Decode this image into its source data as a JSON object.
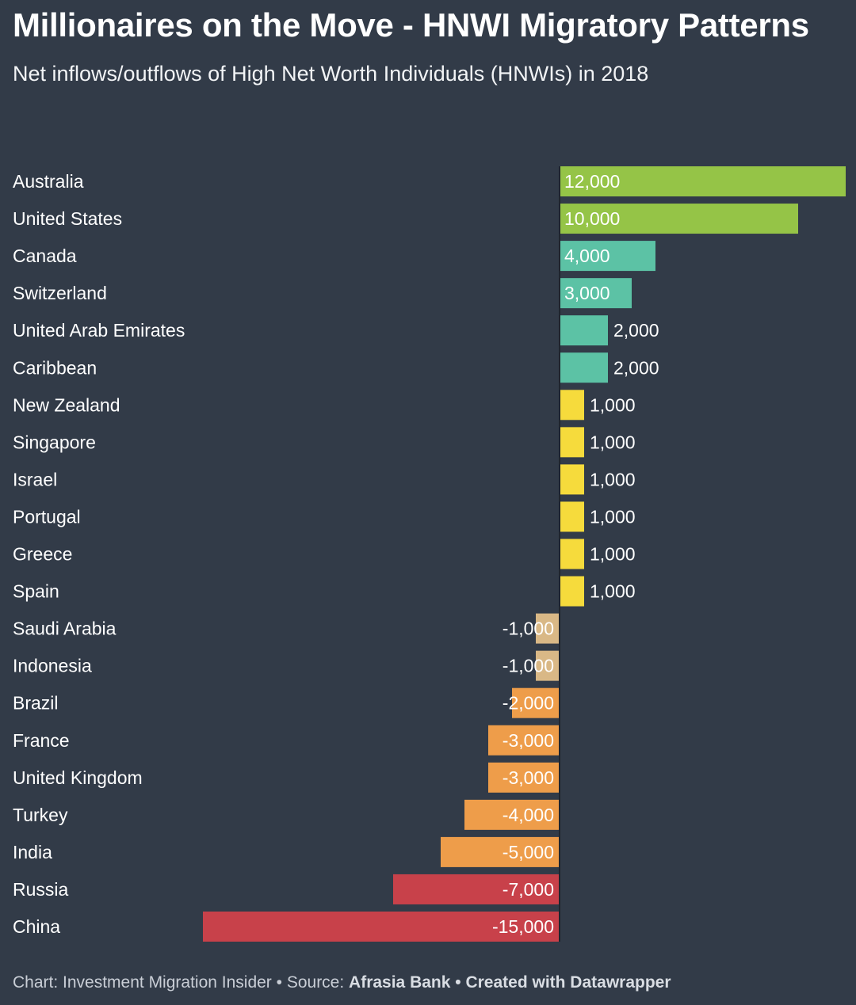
{
  "title": "Millionaires on the Move - HNWI Migratory Patterns",
  "subtitle": "Net inflows/outflows of High Net Worth Individuals (HNWIs) in 2018",
  "footer": {
    "prefix": "Chart: Investment Migration Insider • Source: ",
    "source": "Afrasia Bank",
    "sep": " • ",
    "credit": "Created with Datawrapper"
  },
  "colors": {
    "background": "#323b48",
    "green": "#95c447",
    "teal": "#5cc2a5",
    "yellow": "#f6db3c",
    "tan": "#d9b886",
    "orange": "#ee9d4a",
    "red": "#c8414a"
  },
  "chart_data": {
    "type": "bar",
    "orientation": "horizontal",
    "categories": [
      "Australia",
      "United States",
      "Canada",
      "Switzerland",
      "United Arab Emirates",
      "Caribbean",
      "New Zealand",
      "Singapore",
      "Israel",
      "Portugal",
      "Greece",
      "Spain",
      "Saudi Arabia",
      "Indonesia",
      "Brazil",
      "France",
      "United Kingdom",
      "Turkey",
      "India",
      "Russia",
      "China"
    ],
    "values": [
      12000,
      10000,
      4000,
      3000,
      2000,
      2000,
      1000,
      1000,
      1000,
      1000,
      1000,
      1000,
      -1000,
      -1000,
      -2000,
      -3000,
      -3000,
      -4000,
      -5000,
      -7000,
      -15000
    ],
    "labels": [
      "12,000",
      "10,000",
      "4,000",
      "3,000",
      "2,000",
      "2,000",
      "1,000",
      "1,000",
      "1,000",
      "1,000",
      "1,000",
      "1,000",
      "-1,000",
      "-1,000",
      "-2,000",
      "-3,000",
      "-3,000",
      "-4,000",
      "-5,000",
      "-7,000",
      "-15,000"
    ],
    "bar_colors": [
      "#95c447",
      "#95c447",
      "#5cc2a5",
      "#5cc2a5",
      "#5cc2a5",
      "#5cc2a5",
      "#f6db3c",
      "#f6db3c",
      "#f6db3c",
      "#f6db3c",
      "#f6db3c",
      "#f6db3c",
      "#d9b886",
      "#d9b886",
      "#ee9d4a",
      "#ee9d4a",
      "#ee9d4a",
      "#ee9d4a",
      "#ee9d4a",
      "#c8414a",
      "#c8414a"
    ],
    "xlim": [
      -15000,
      12000
    ],
    "grid": false,
    "legend": "none"
  }
}
